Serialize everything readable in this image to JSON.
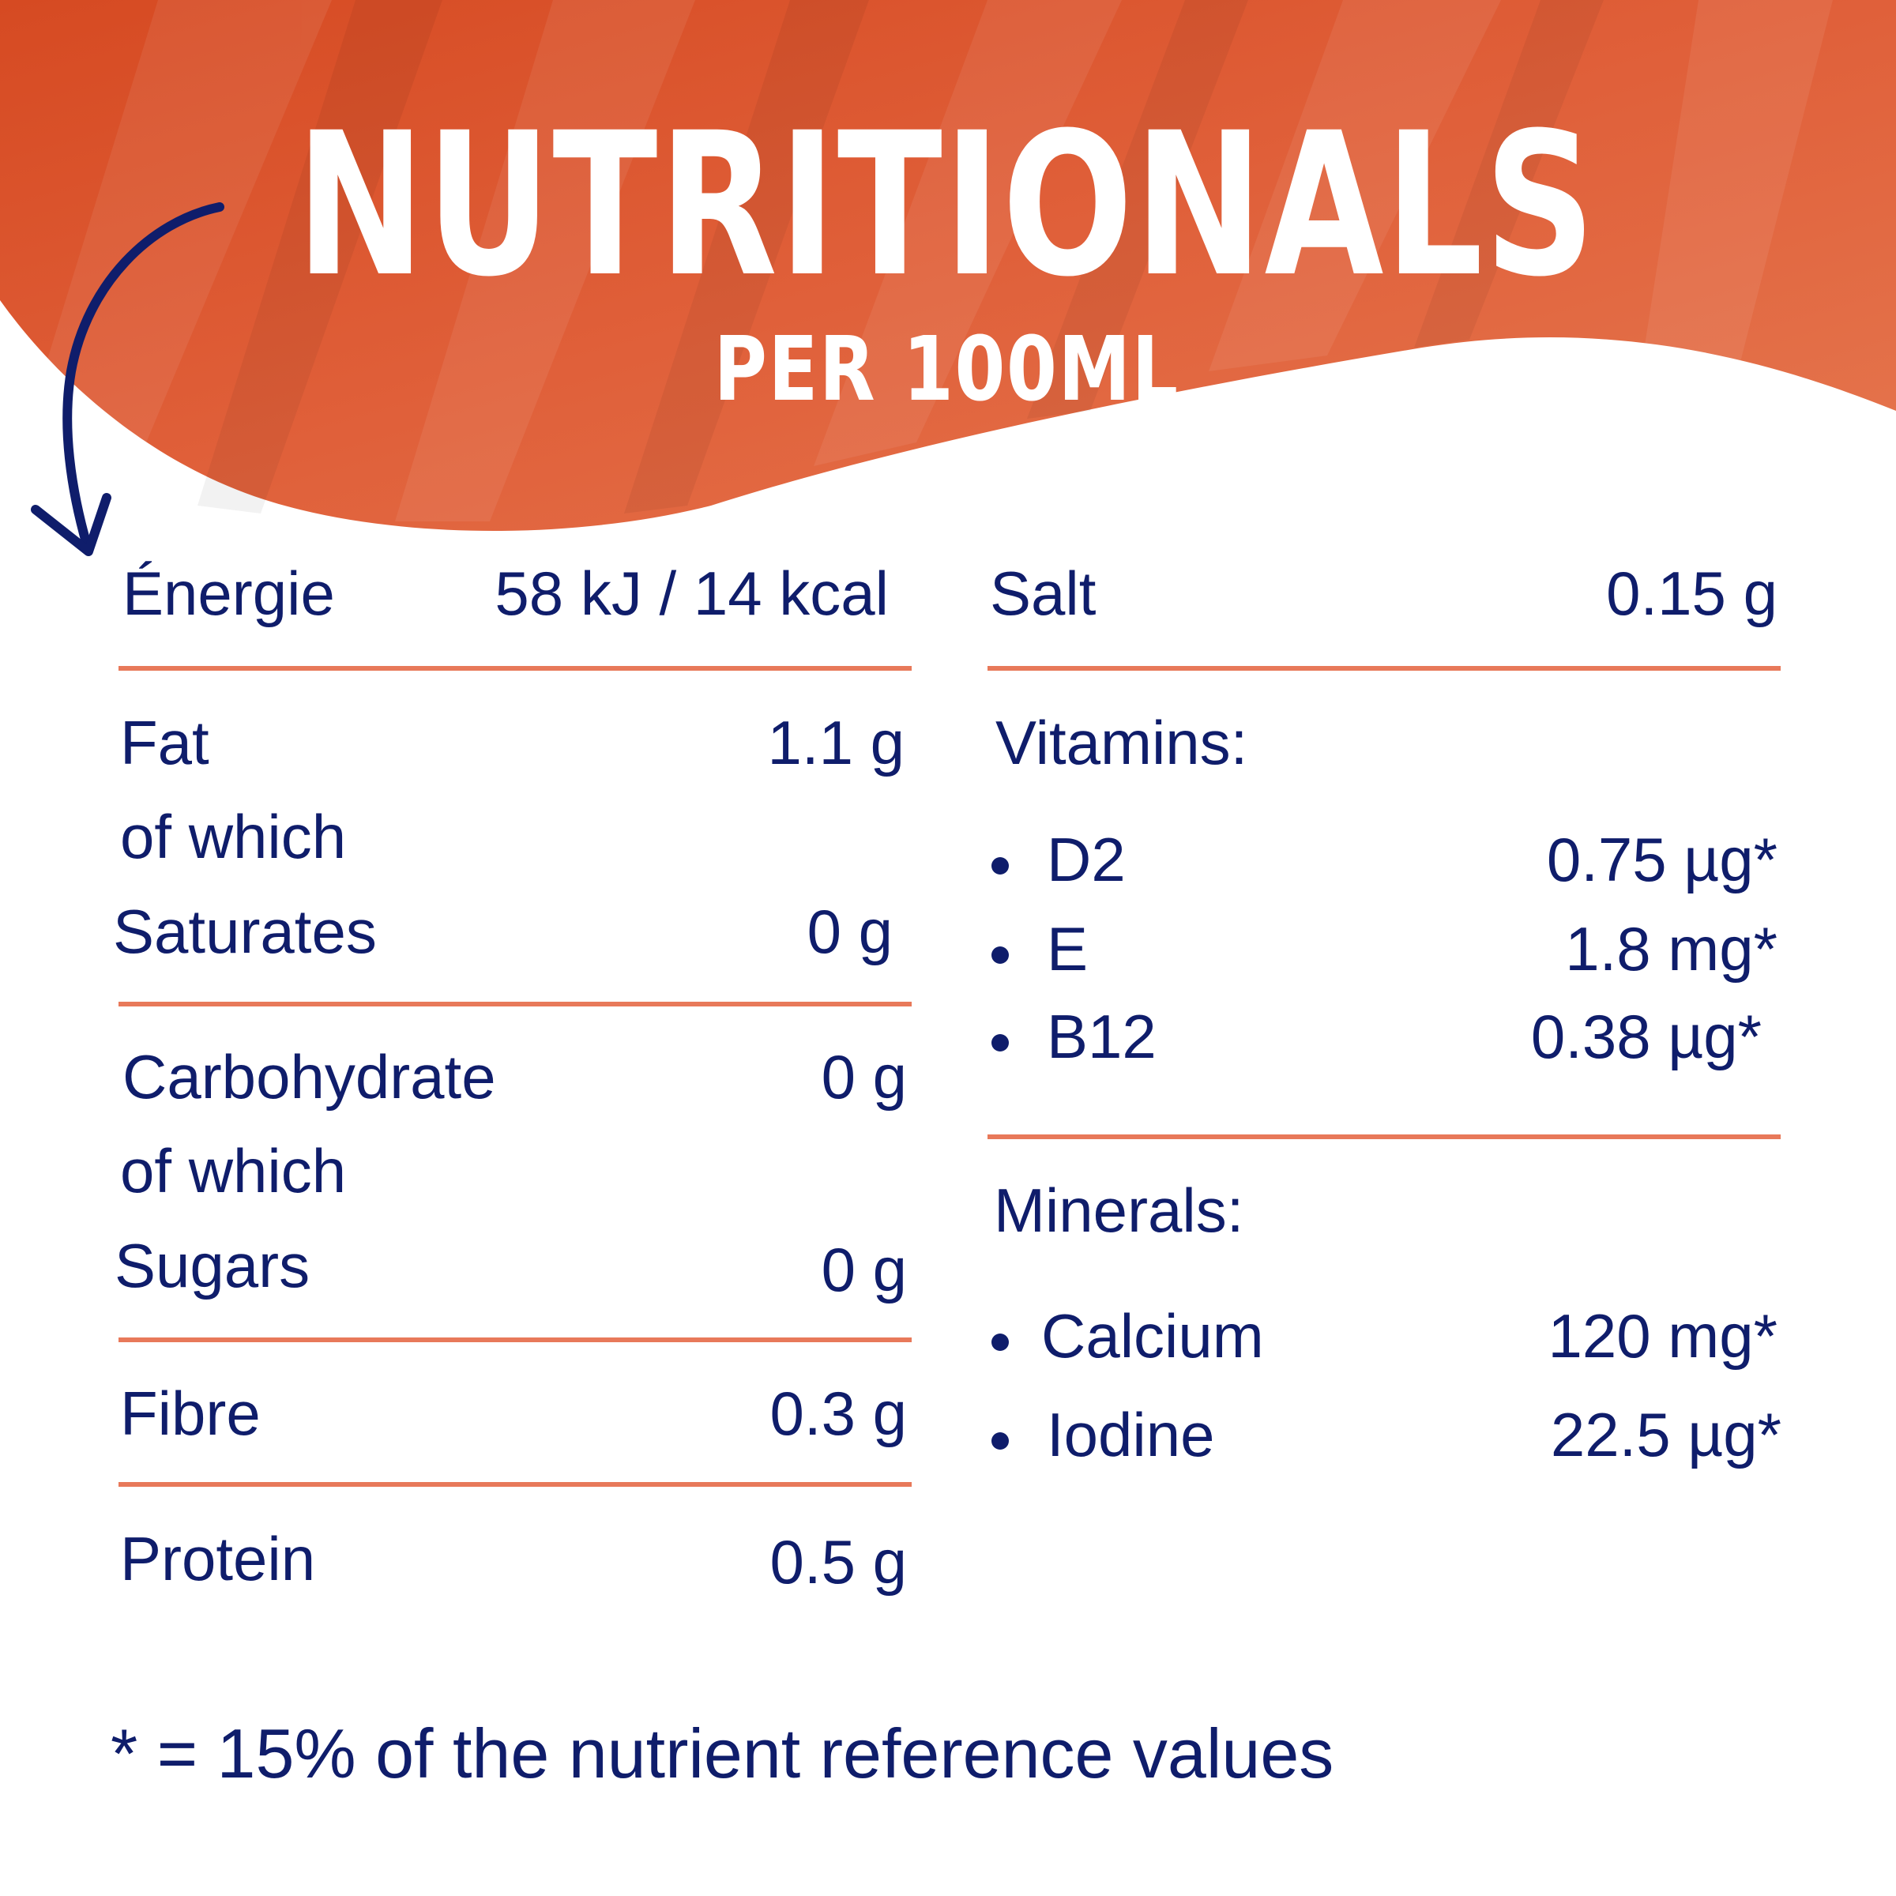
{
  "header": {
    "title": "NUTRITIONALS",
    "subtitle": "PER 100ML",
    "banner_color": "#d9512a",
    "arrow_color": "#0f1d6b"
  },
  "left_table": {
    "energy": {
      "label": "Énergie",
      "value": "58 kJ / 14 kcal"
    },
    "fat": {
      "label": "Fat",
      "value": "1.1 g",
      "of_which": "of which",
      "sub_label": "Saturates",
      "sub_value": "0 g"
    },
    "carbohydrate": {
      "label": "Carbohydrate",
      "value": "0 g",
      "of_which": "of which",
      "sub_label": "Sugars",
      "sub_value": "0 g"
    },
    "fibre": {
      "label": "Fibre",
      "value": "0.3 g"
    },
    "protein": {
      "label": "Protein",
      "value": "0.5 g"
    }
  },
  "right_table": {
    "salt": {
      "label": "Salt",
      "value": "0.15 g"
    },
    "vitamins": {
      "heading": "Vitamins:",
      "items": [
        {
          "name": "D2",
          "value": "0.75 µg*"
        },
        {
          "name": "E",
          "value": "1.8 mg*"
        },
        {
          "name": "B12",
          "value": "0.38 µg*"
        }
      ]
    },
    "minerals": {
      "heading": "Minerals:",
      "items": [
        {
          "name": "Calcium",
          "value": "120 mg*"
        },
        {
          "name": "Iodine",
          "value": "22.5 µg*"
        }
      ]
    }
  },
  "footnote": "* = 15% of the nutrient reference values",
  "colors": {
    "text": "#0f1d6b",
    "divider": "#e8795a",
    "background": "#ffffff"
  }
}
